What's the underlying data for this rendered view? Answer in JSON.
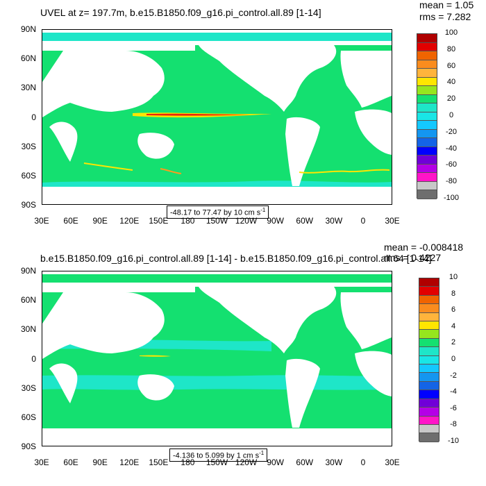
{
  "panels": [
    {
      "title": "UVEL at z= 197.7m, b.e15.B1850.f09_g16.pi_control.all.89 [1-14]",
      "mean": "mean = 1.05",
      "rms": "rms = 7.282",
      "range": "-48.17 to 77.47 by 10 cm s",
      "range_unit_exp": "-1",
      "colorbar_labels": [
        "100",
        "80",
        "60",
        "40",
        "20",
        "0",
        "-20",
        "-40",
        "-60",
        "-80",
        "-100"
      ]
    },
    {
      "title": "b.e15.B1850.f09_g16.pi_control.all.89 [1-14] - b.e15.B1850.f09_g16.pi_control.all.64 [1-14]",
      "mean": "mean = -0.008418",
      "rms": "rms = 0.4227",
      "range": "-4.136 to 5.099 by 1 cm s",
      "range_unit_exp": "-1",
      "colorbar_labels": [
        "10",
        "8",
        "6",
        "4",
        "2",
        "0",
        "-2",
        "-4",
        "-6",
        "-8",
        "-10"
      ]
    }
  ],
  "lat_labels": [
    "90N",
    "60N",
    "30N",
    "0",
    "30S",
    "60S",
    "90S"
  ],
  "lon_labels": [
    "30E",
    "60E",
    "90E",
    "120E",
    "150E",
    "180",
    "150W",
    "120W",
    "90W",
    "60W",
    "30W",
    "0",
    "30E"
  ],
  "colors": {
    "ocean_main": "#14e070",
    "ocean_light": "#1ee6c8",
    "ocean_pale": "#19e6e6",
    "land": "#ffffff",
    "yellow": "#ffe600",
    "orange": "#ff9a1e",
    "red": "#e8260c",
    "colorbar": [
      "#b00000",
      "#e20000",
      "#f06400",
      "#fa8c1e",
      "#ffb43c",
      "#ffe600",
      "#96e61e",
      "#14e070",
      "#1ee6c8",
      "#19e6e6",
      "#14c8ff",
      "#1496f0",
      "#1464e6",
      "#0000ff",
      "#7000d8",
      "#b400e6",
      "#ff14c8",
      "#c8c8c8",
      "#6e6e6e"
    ]
  }
}
